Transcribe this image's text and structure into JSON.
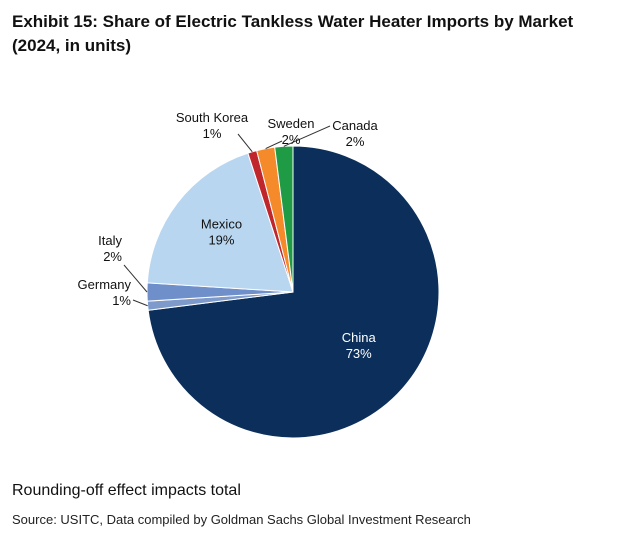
{
  "chart_data": {
    "type": "pie",
    "title": "Exhibit 15: Share of Electric Tankless Water Heater Imports by Market (2024, in units)",
    "categories": [
      "China",
      "Germany",
      "Italy",
      "Mexico",
      "South Korea",
      "Sweden",
      "Canada"
    ],
    "values": [
      73,
      1,
      2,
      19,
      1,
      2,
      2
    ],
    "value_labels": [
      "73%",
      "1%",
      "2%",
      "19%",
      "1%",
      "2%",
      "2%"
    ],
    "colors": [
      "#0b2f5a",
      "#7d9acb",
      "#6f8fcb",
      "#b9d6f0",
      "#c0272d",
      "#f58a2a",
      "#1f9a45"
    ]
  },
  "footer": {
    "note": "Rounding-off effect impacts total",
    "source": "Source: USITC, Data compiled by Goldman Sachs Global Investment Research"
  }
}
